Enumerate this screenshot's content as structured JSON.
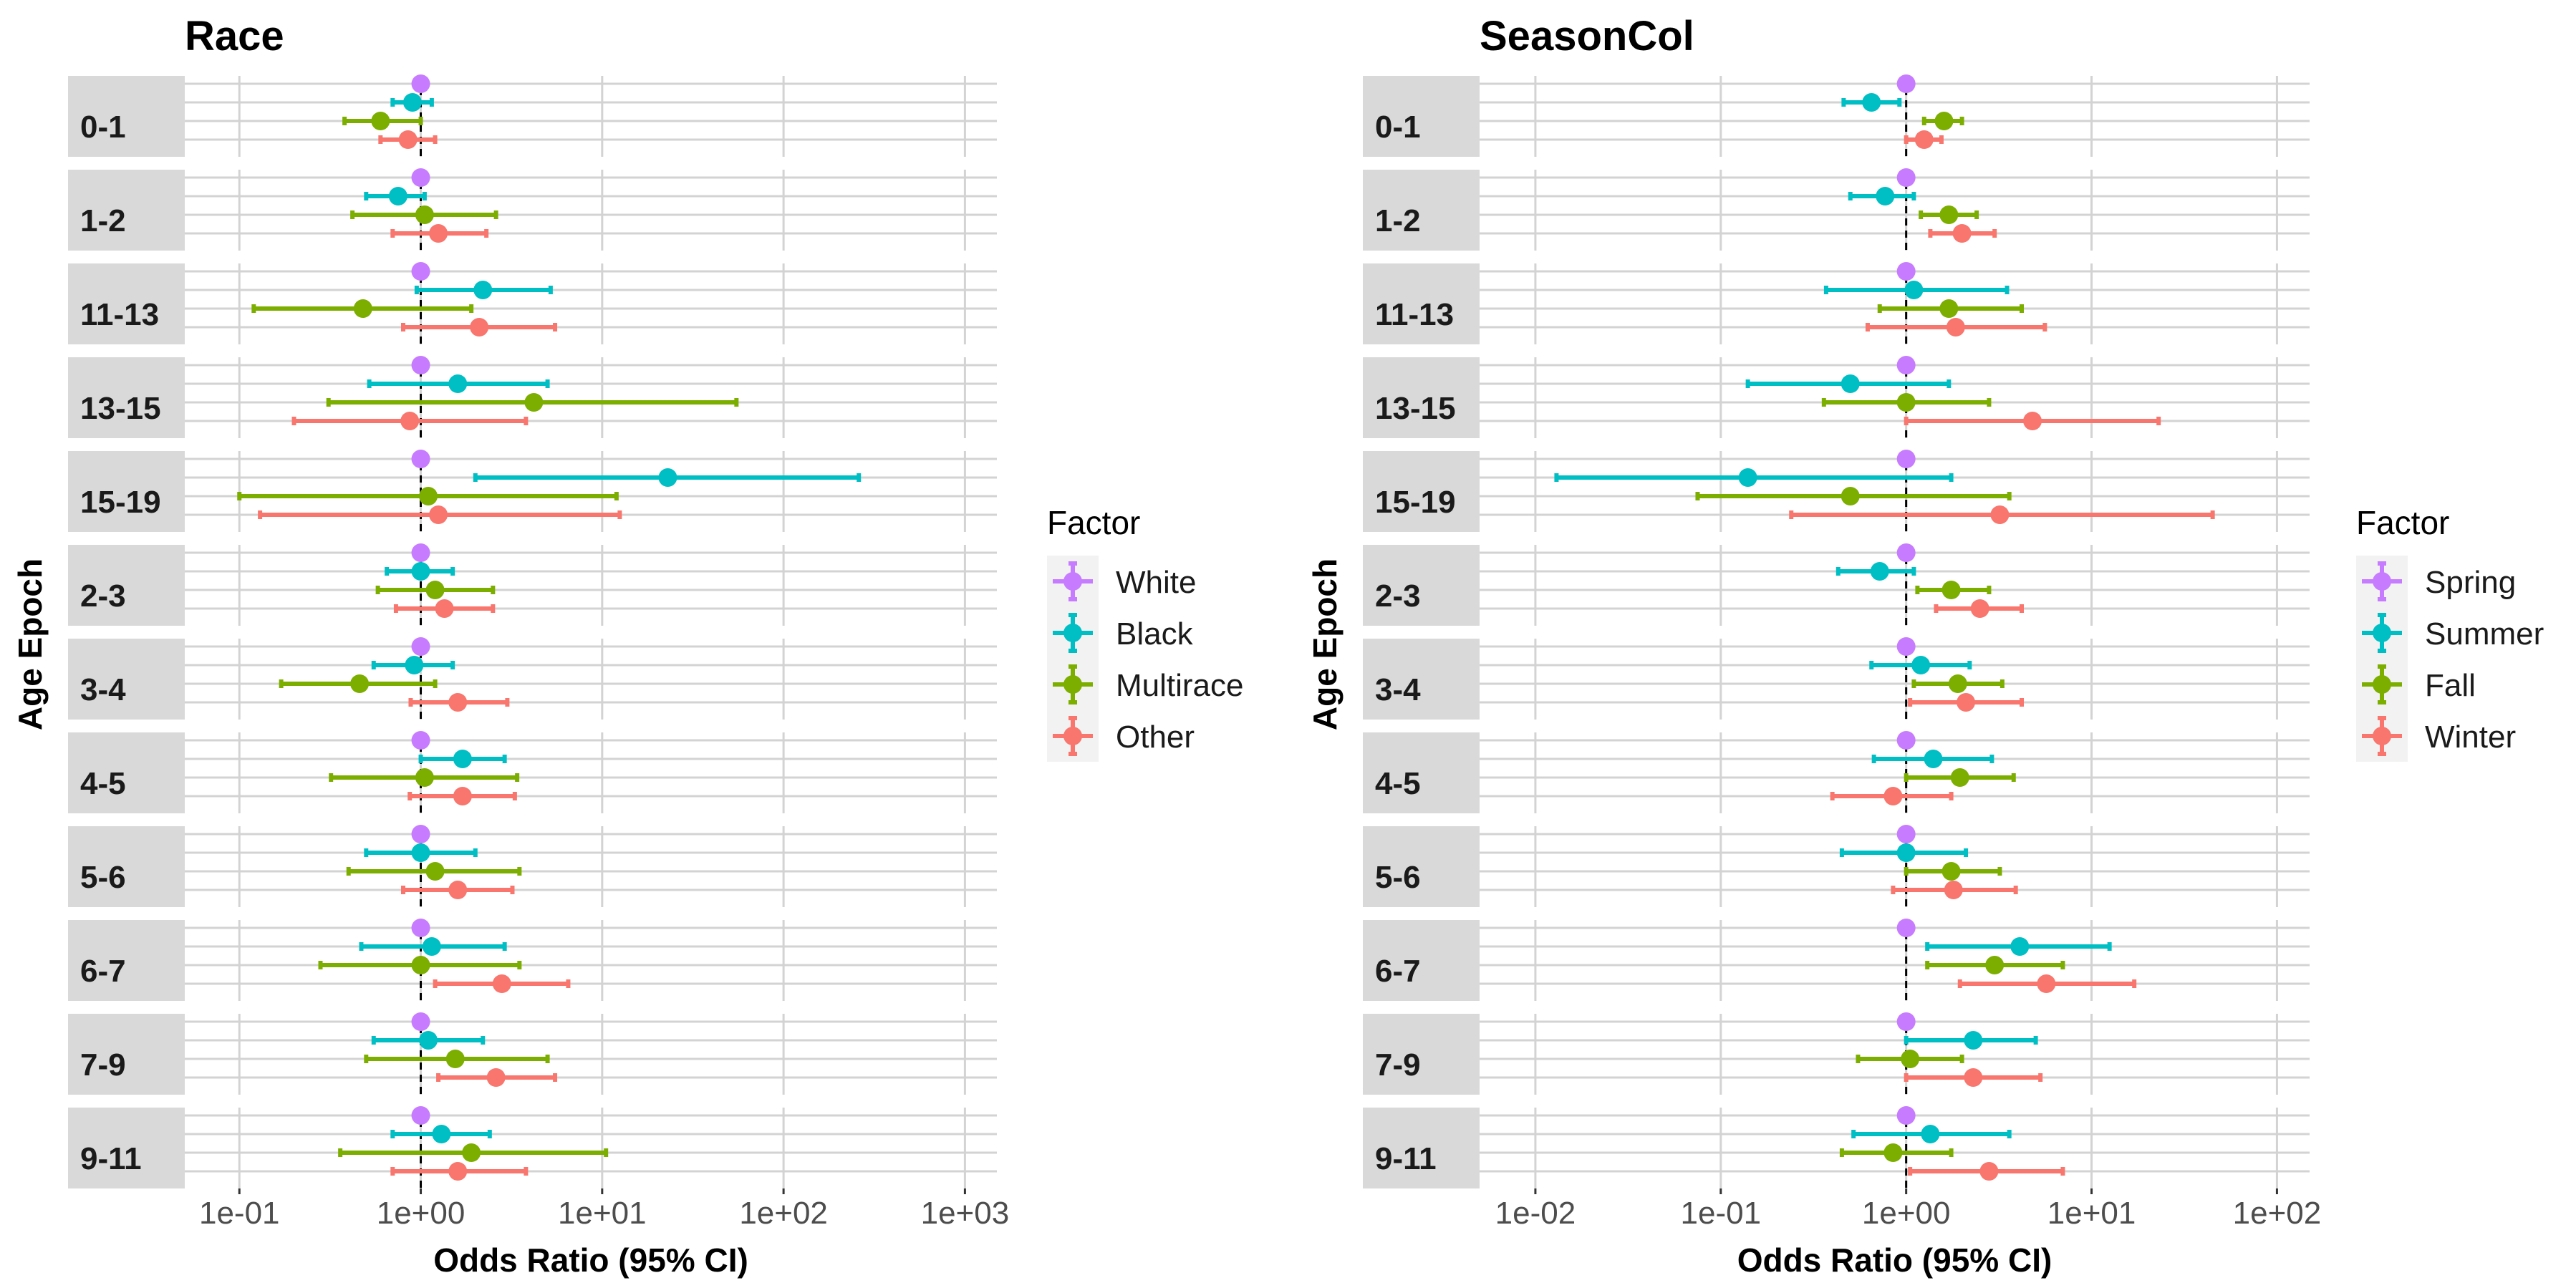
{
  "colors": {
    "spring_white": "#C77CFF",
    "summer_black": "#00BFC4",
    "fall_multirace": "#7CAE00",
    "winter_other": "#F8766D",
    "strip": "#D9D9D9",
    "grid": "#D3D3D3"
  },
  "chart_data": [
    {
      "type": "forest",
      "title": "Race",
      "xlabel": "Odds Ratio (95% CI)",
      "ylabel": "Age Epoch",
      "x_scale": "log10",
      "x_ticks": [
        0.1,
        1,
        10,
        100,
        1000
      ],
      "x_tick_labels": [
        "1e-01",
        "1e+00",
        "1e+01",
        "1e+02",
        "1e+03"
      ],
      "xlim": [
        0.05,
        1500
      ],
      "reference_line": 1,
      "legend_title": "Factor",
      "legend_position": "right",
      "grid": true,
      "series": [
        {
          "name": "White",
          "color": "#C77CFF"
        },
        {
          "name": "Black",
          "color": "#00BFC4"
        },
        {
          "name": "Multirace",
          "color": "#7CAE00"
        },
        {
          "name": "Other",
          "color": "#F8766D"
        }
      ],
      "facets": [
        {
          "label": "0-1",
          "estimates": [
            {
              "series": "White",
              "or": 1.0,
              "lo": 1.0,
              "hi": 1.0
            },
            {
              "series": "Black",
              "or": 0.9,
              "lo": 0.7,
              "hi": 1.15
            },
            {
              "series": "Multirace",
              "or": 0.6,
              "lo": 0.38,
              "hi": 1.0
            },
            {
              "series": "Other",
              "or": 0.85,
              "lo": 0.6,
              "hi": 1.2
            }
          ]
        },
        {
          "label": "1-2",
          "estimates": [
            {
              "series": "White",
              "or": 1.0,
              "lo": 1.0,
              "hi": 1.0
            },
            {
              "series": "Black",
              "or": 0.75,
              "lo": 0.5,
              "hi": 1.05
            },
            {
              "series": "Multirace",
              "or": 1.05,
              "lo": 0.42,
              "hi": 2.6
            },
            {
              "series": "Other",
              "or": 1.25,
              "lo": 0.7,
              "hi": 2.3
            }
          ]
        },
        {
          "label": "11-13",
          "estimates": [
            {
              "series": "White",
              "or": 1.0,
              "lo": 1.0,
              "hi": 1.0
            },
            {
              "series": "Black",
              "or": 2.2,
              "lo": 0.95,
              "hi": 5.2
            },
            {
              "series": "Multirace",
              "or": 0.48,
              "lo": 0.12,
              "hi": 1.9
            },
            {
              "series": "Other",
              "or": 2.1,
              "lo": 0.8,
              "hi": 5.5
            }
          ]
        },
        {
          "label": "13-15",
          "estimates": [
            {
              "series": "White",
              "or": 1.0,
              "lo": 1.0,
              "hi": 1.0
            },
            {
              "series": "Black",
              "or": 1.6,
              "lo": 0.52,
              "hi": 5.0
            },
            {
              "series": "Multirace",
              "or": 4.2,
              "lo": 0.31,
              "hi": 55
            },
            {
              "series": "Other",
              "or": 0.87,
              "lo": 0.2,
              "hi": 3.8
            }
          ]
        },
        {
          "label": "15-19",
          "estimates": [
            {
              "series": "White",
              "or": 1.0,
              "lo": 1.0,
              "hi": 1.0
            },
            {
              "series": "Black",
              "or": 23,
              "lo": 2.0,
              "hi": 260
            },
            {
              "series": "Multirace",
              "or": 1.1,
              "lo": 0.1,
              "hi": 12
            },
            {
              "series": "Other",
              "or": 1.25,
              "lo": 0.13,
              "hi": 12.5
            }
          ]
        },
        {
          "label": "2-3",
          "estimates": [
            {
              "series": "White",
              "or": 1.0,
              "lo": 1.0,
              "hi": 1.0
            },
            {
              "series": "Black",
              "or": 1.0,
              "lo": 0.65,
              "hi": 1.5
            },
            {
              "series": "Multirace",
              "or": 1.2,
              "lo": 0.58,
              "hi": 2.5
            },
            {
              "series": "Other",
              "or": 1.35,
              "lo": 0.73,
              "hi": 2.5
            }
          ]
        },
        {
          "label": "3-4",
          "estimates": [
            {
              "series": "White",
              "or": 1.0,
              "lo": 1.0,
              "hi": 1.0
            },
            {
              "series": "Black",
              "or": 0.92,
              "lo": 0.55,
              "hi": 1.5
            },
            {
              "series": "Multirace",
              "or": 0.46,
              "lo": 0.17,
              "hi": 1.2
            },
            {
              "series": "Other",
              "or": 1.6,
              "lo": 0.88,
              "hi": 3.0
            }
          ]
        },
        {
          "label": "4-5",
          "estimates": [
            {
              "series": "White",
              "or": 1.0,
              "lo": 1.0,
              "hi": 1.0
            },
            {
              "series": "Black",
              "or": 1.7,
              "lo": 1.0,
              "hi": 2.9
            },
            {
              "series": "Multirace",
              "or": 1.05,
              "lo": 0.32,
              "hi": 3.4
            },
            {
              "series": "Other",
              "or": 1.7,
              "lo": 0.87,
              "hi": 3.3
            }
          ]
        },
        {
          "label": "5-6",
          "estimates": [
            {
              "series": "White",
              "or": 1.0,
              "lo": 1.0,
              "hi": 1.0
            },
            {
              "series": "Black",
              "or": 1.0,
              "lo": 0.5,
              "hi": 2.0
            },
            {
              "series": "Multirace",
              "or": 1.2,
              "lo": 0.4,
              "hi": 3.5
            },
            {
              "series": "Other",
              "or": 1.6,
              "lo": 0.8,
              "hi": 3.2
            }
          ]
        },
        {
          "label": "6-7",
          "estimates": [
            {
              "series": "White",
              "or": 1.0,
              "lo": 1.0,
              "hi": 1.0
            },
            {
              "series": "Black",
              "or": 1.15,
              "lo": 0.47,
              "hi": 2.9
            },
            {
              "series": "Multirace",
              "or": 1.0,
              "lo": 0.28,
              "hi": 3.5
            },
            {
              "series": "Other",
              "or": 2.8,
              "lo": 1.2,
              "hi": 6.5
            }
          ]
        },
        {
          "label": "7-9",
          "estimates": [
            {
              "series": "White",
              "or": 1.0,
              "lo": 1.0,
              "hi": 1.0
            },
            {
              "series": "Black",
              "or": 1.1,
              "lo": 0.55,
              "hi": 2.2
            },
            {
              "series": "Multirace",
              "or": 1.55,
              "lo": 0.5,
              "hi": 5.0
            },
            {
              "series": "Other",
              "or": 2.6,
              "lo": 1.25,
              "hi": 5.5
            }
          ]
        },
        {
          "label": "9-11",
          "estimates": [
            {
              "series": "White",
              "or": 1.0,
              "lo": 1.0,
              "hi": 1.0
            },
            {
              "series": "Black",
              "or": 1.3,
              "lo": 0.7,
              "hi": 2.4
            },
            {
              "series": "Multirace",
              "or": 1.9,
              "lo": 0.36,
              "hi": 10.5
            },
            {
              "series": "Other",
              "or": 1.6,
              "lo": 0.7,
              "hi": 3.8
            }
          ]
        }
      ]
    },
    {
      "type": "forest",
      "title": "SeasonCol",
      "xlabel": "Odds Ratio (95% CI)",
      "ylabel": "Age Epoch",
      "x_scale": "log10",
      "x_ticks": [
        0.01,
        0.1,
        1,
        10,
        100
      ],
      "x_tick_labels": [
        "1e-02",
        "1e-01",
        "1e+00",
        "1e+01",
        "1e+02"
      ],
      "xlim": [
        0.005,
        150
      ],
      "reference_line": 1,
      "legend_title": "Factor",
      "legend_position": "right",
      "grid": true,
      "series": [
        {
          "name": "Spring",
          "color": "#C77CFF"
        },
        {
          "name": "Summer",
          "color": "#00BFC4"
        },
        {
          "name": "Fall",
          "color": "#7CAE00"
        },
        {
          "name": "Winter",
          "color": "#F8766D"
        }
      ],
      "facets": [
        {
          "label": "0-1",
          "estimates": [
            {
              "series": "Spring",
              "or": 1.0,
              "lo": 1.0,
              "hi": 1.0
            },
            {
              "series": "Summer",
              "or": 0.65,
              "lo": 0.46,
              "hi": 0.92
            },
            {
              "series": "Fall",
              "or": 1.6,
              "lo": 1.25,
              "hi": 2.0
            },
            {
              "series": "Winter",
              "or": 1.25,
              "lo": 1.0,
              "hi": 1.55
            }
          ]
        },
        {
          "label": "1-2",
          "estimates": [
            {
              "series": "Spring",
              "or": 1.0,
              "lo": 1.0,
              "hi": 1.0
            },
            {
              "series": "Summer",
              "or": 0.77,
              "lo": 0.5,
              "hi": 1.1
            },
            {
              "series": "Fall",
              "or": 1.7,
              "lo": 1.2,
              "hi": 2.4
            },
            {
              "series": "Winter",
              "or": 2.0,
              "lo": 1.35,
              "hi": 3.0
            }
          ]
        },
        {
          "label": "11-13",
          "estimates": [
            {
              "series": "Spring",
              "or": 1.0,
              "lo": 1.0,
              "hi": 1.0
            },
            {
              "series": "Summer",
              "or": 1.1,
              "lo": 0.37,
              "hi": 3.5
            },
            {
              "series": "Fall",
              "or": 1.7,
              "lo": 0.72,
              "hi": 4.2
            },
            {
              "series": "Winter",
              "or": 1.85,
              "lo": 0.62,
              "hi": 5.6
            }
          ]
        },
        {
          "label": "13-15",
          "estimates": [
            {
              "series": "Spring",
              "or": 1.0,
              "lo": 1.0,
              "hi": 1.0
            },
            {
              "series": "Summer",
              "or": 0.5,
              "lo": 0.14,
              "hi": 1.7
            },
            {
              "series": "Fall",
              "or": 1.0,
              "lo": 0.36,
              "hi": 2.8
            },
            {
              "series": "Winter",
              "or": 4.8,
              "lo": 1.0,
              "hi": 23
            }
          ]
        },
        {
          "label": "15-19",
          "estimates": [
            {
              "series": "Spring",
              "or": 1.0,
              "lo": 1.0,
              "hi": 1.0
            },
            {
              "series": "Summer",
              "or": 0.14,
              "lo": 0.013,
              "hi": 1.75
            },
            {
              "series": "Fall",
              "or": 0.5,
              "lo": 0.075,
              "hi": 3.6
            },
            {
              "series": "Winter",
              "or": 3.2,
              "lo": 0.24,
              "hi": 45
            }
          ]
        },
        {
          "label": "2-3",
          "estimates": [
            {
              "series": "Spring",
              "or": 1.0,
              "lo": 1.0,
              "hi": 1.0
            },
            {
              "series": "Summer",
              "or": 0.72,
              "lo": 0.43,
              "hi": 1.1
            },
            {
              "series": "Fall",
              "or": 1.75,
              "lo": 1.15,
              "hi": 2.8
            },
            {
              "series": "Winter",
              "or": 2.5,
              "lo": 1.45,
              "hi": 4.2
            }
          ]
        },
        {
          "label": "3-4",
          "estimates": [
            {
              "series": "Spring",
              "or": 1.0,
              "lo": 1.0,
              "hi": 1.0
            },
            {
              "series": "Summer",
              "or": 1.2,
              "lo": 0.65,
              "hi": 2.2
            },
            {
              "series": "Fall",
              "or": 1.9,
              "lo": 1.1,
              "hi": 3.3
            },
            {
              "series": "Winter",
              "or": 2.1,
              "lo": 1.05,
              "hi": 4.2
            }
          ]
        },
        {
          "label": "4-5",
          "estimates": [
            {
              "series": "Spring",
              "or": 1.0,
              "lo": 1.0,
              "hi": 1.0
            },
            {
              "series": "Summer",
              "or": 1.4,
              "lo": 0.67,
              "hi": 2.9
            },
            {
              "series": "Fall",
              "or": 1.95,
              "lo": 1.0,
              "hi": 3.8
            },
            {
              "series": "Winter",
              "or": 0.85,
              "lo": 0.4,
              "hi": 1.75
            }
          ]
        },
        {
          "label": "5-6",
          "estimates": [
            {
              "series": "Spring",
              "or": 1.0,
              "lo": 1.0,
              "hi": 1.0
            },
            {
              "series": "Summer",
              "or": 1.0,
              "lo": 0.45,
              "hi": 2.1
            },
            {
              "series": "Fall",
              "or": 1.75,
              "lo": 1.0,
              "hi": 3.2
            },
            {
              "series": "Winter",
              "or": 1.8,
              "lo": 0.85,
              "hi": 3.9
            }
          ]
        },
        {
          "label": "6-7",
          "estimates": [
            {
              "series": "Spring",
              "or": 1.0,
              "lo": 1.0,
              "hi": 1.0
            },
            {
              "series": "Summer",
              "or": 4.1,
              "lo": 1.3,
              "hi": 12.5
            },
            {
              "series": "Fall",
              "or": 3.0,
              "lo": 1.3,
              "hi": 7.0
            },
            {
              "series": "Winter",
              "or": 5.7,
              "lo": 1.95,
              "hi": 17
            }
          ]
        },
        {
          "label": "7-9",
          "estimates": [
            {
              "series": "Spring",
              "or": 1.0,
              "lo": 1.0,
              "hi": 1.0
            },
            {
              "series": "Summer",
              "or": 2.3,
              "lo": 1.0,
              "hi": 5.0
            },
            {
              "series": "Fall",
              "or": 1.05,
              "lo": 0.55,
              "hi": 2.0
            },
            {
              "series": "Winter",
              "or": 2.3,
              "lo": 1.0,
              "hi": 5.3
            }
          ]
        },
        {
          "label": "9-11",
          "estimates": [
            {
              "series": "Spring",
              "or": 1.0,
              "lo": 1.0,
              "hi": 1.0
            },
            {
              "series": "Summer",
              "or": 1.35,
              "lo": 0.52,
              "hi": 3.6
            },
            {
              "series": "Fall",
              "or": 0.85,
              "lo": 0.45,
              "hi": 1.75
            },
            {
              "series": "Winter",
              "or": 2.8,
              "lo": 1.05,
              "hi": 7.0
            }
          ]
        }
      ]
    }
  ]
}
